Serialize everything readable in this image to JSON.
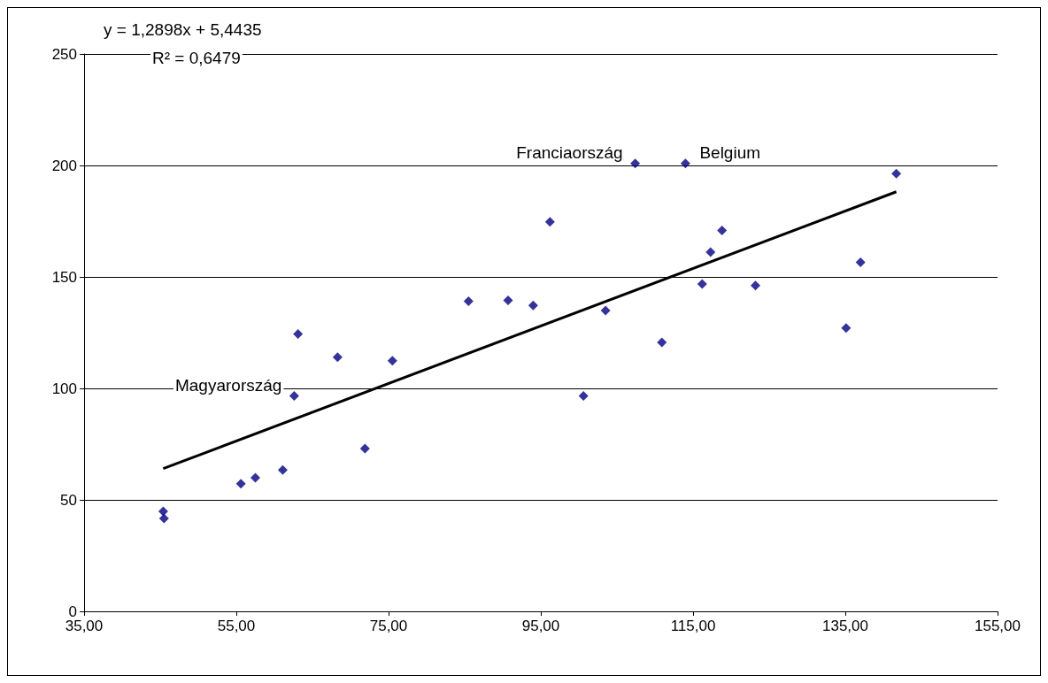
{
  "chart_data": {
    "type": "scatter",
    "annotations": [
      "y = 1,2898x + 5,4435",
      "R² = 0,6479",
      {
        "text": "Franciaország",
        "x": 107.4,
        "y": 200.9
      },
      {
        "text": "Belgium",
        "x": 114.0,
        "y": 200.9
      },
      {
        "text": "Magyarország",
        "x": 62.6,
        "y": 96.6
      }
    ],
    "series": [
      {
        "color": "#000080",
        "marker": "diamond",
        "x": [
          45.4,
          45.5,
          55.6,
          57.5,
          61.1,
          62.6,
          63.1,
          68.3,
          71.9,
          75.5,
          85.5,
          90.7,
          94.0,
          96.2,
          100.6,
          103.5,
          107.4,
          110.9,
          114.0,
          116.2,
          117.3,
          118.8,
          123.2,
          135.1,
          137.0,
          141.7
        ],
        "values": [
          44.8,
          41.7,
          57.2,
          59.9,
          63.4,
          96.6,
          124.4,
          114,
          73,
          112.4,
          139.1,
          139.5,
          137.2,
          174.7,
          96.6,
          134.9,
          200.9,
          120.6,
          200.9,
          146.8,
          161.1,
          170.8,
          146.1,
          127.1,
          156.5,
          196.3
        ]
      },
      {
        "type": "line",
        "color": "#000000",
        "marker": "none",
        "x": [
          45.4,
          141.7
        ],
        "values": [
          64.0,
          188.2
        ]
      }
    ],
    "xlim": [
      35,
      155
    ],
    "xticks": [
      {
        "value": 35,
        "label": "35,00"
      },
      {
        "value": 55,
        "label": "55,00"
      },
      {
        "value": 75,
        "label": "75,00"
      },
      {
        "value": 95,
        "label": "95,00"
      },
      {
        "value": 115,
        "label": "115,00"
      },
      {
        "value": 135,
        "label": "135,00"
      },
      {
        "value": 155,
        "label": "155,00"
      }
    ],
    "ylim": [
      0,
      250
    ],
    "yticks": [
      0,
      50,
      100,
      150,
      200,
      250
    ],
    "grid": "y"
  }
}
